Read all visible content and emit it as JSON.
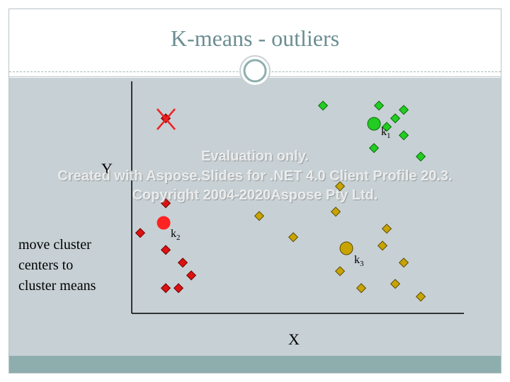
{
  "slide": {
    "title": "K-means - outliers",
    "side_text": [
      "move cluster",
      "centers to",
      "cluster means"
    ],
    "x_axis_label": "X",
    "y_axis_label": "Y",
    "watermark": [
      "Evaluation only.",
      "Created with Aspose.Slides for .NET 4.0 Client Profile 20.3.",
      "Copyright 2004-2020Aspose Pty Ltd."
    ]
  },
  "colors": {
    "cluster1": "#22cc22",
    "cluster2": "#dd1111",
    "cluster3": "#c8a400",
    "outlier_cross": "#ee2222"
  },
  "centers": [
    {
      "label_main": "k",
      "label_sub": "1",
      "cluster": "cluster1"
    },
    {
      "label_main": "k",
      "label_sub": "2",
      "cluster": "cluster2"
    },
    {
      "label_main": "k",
      "label_sub": "3",
      "cluster": "cluster3"
    }
  ]
}
